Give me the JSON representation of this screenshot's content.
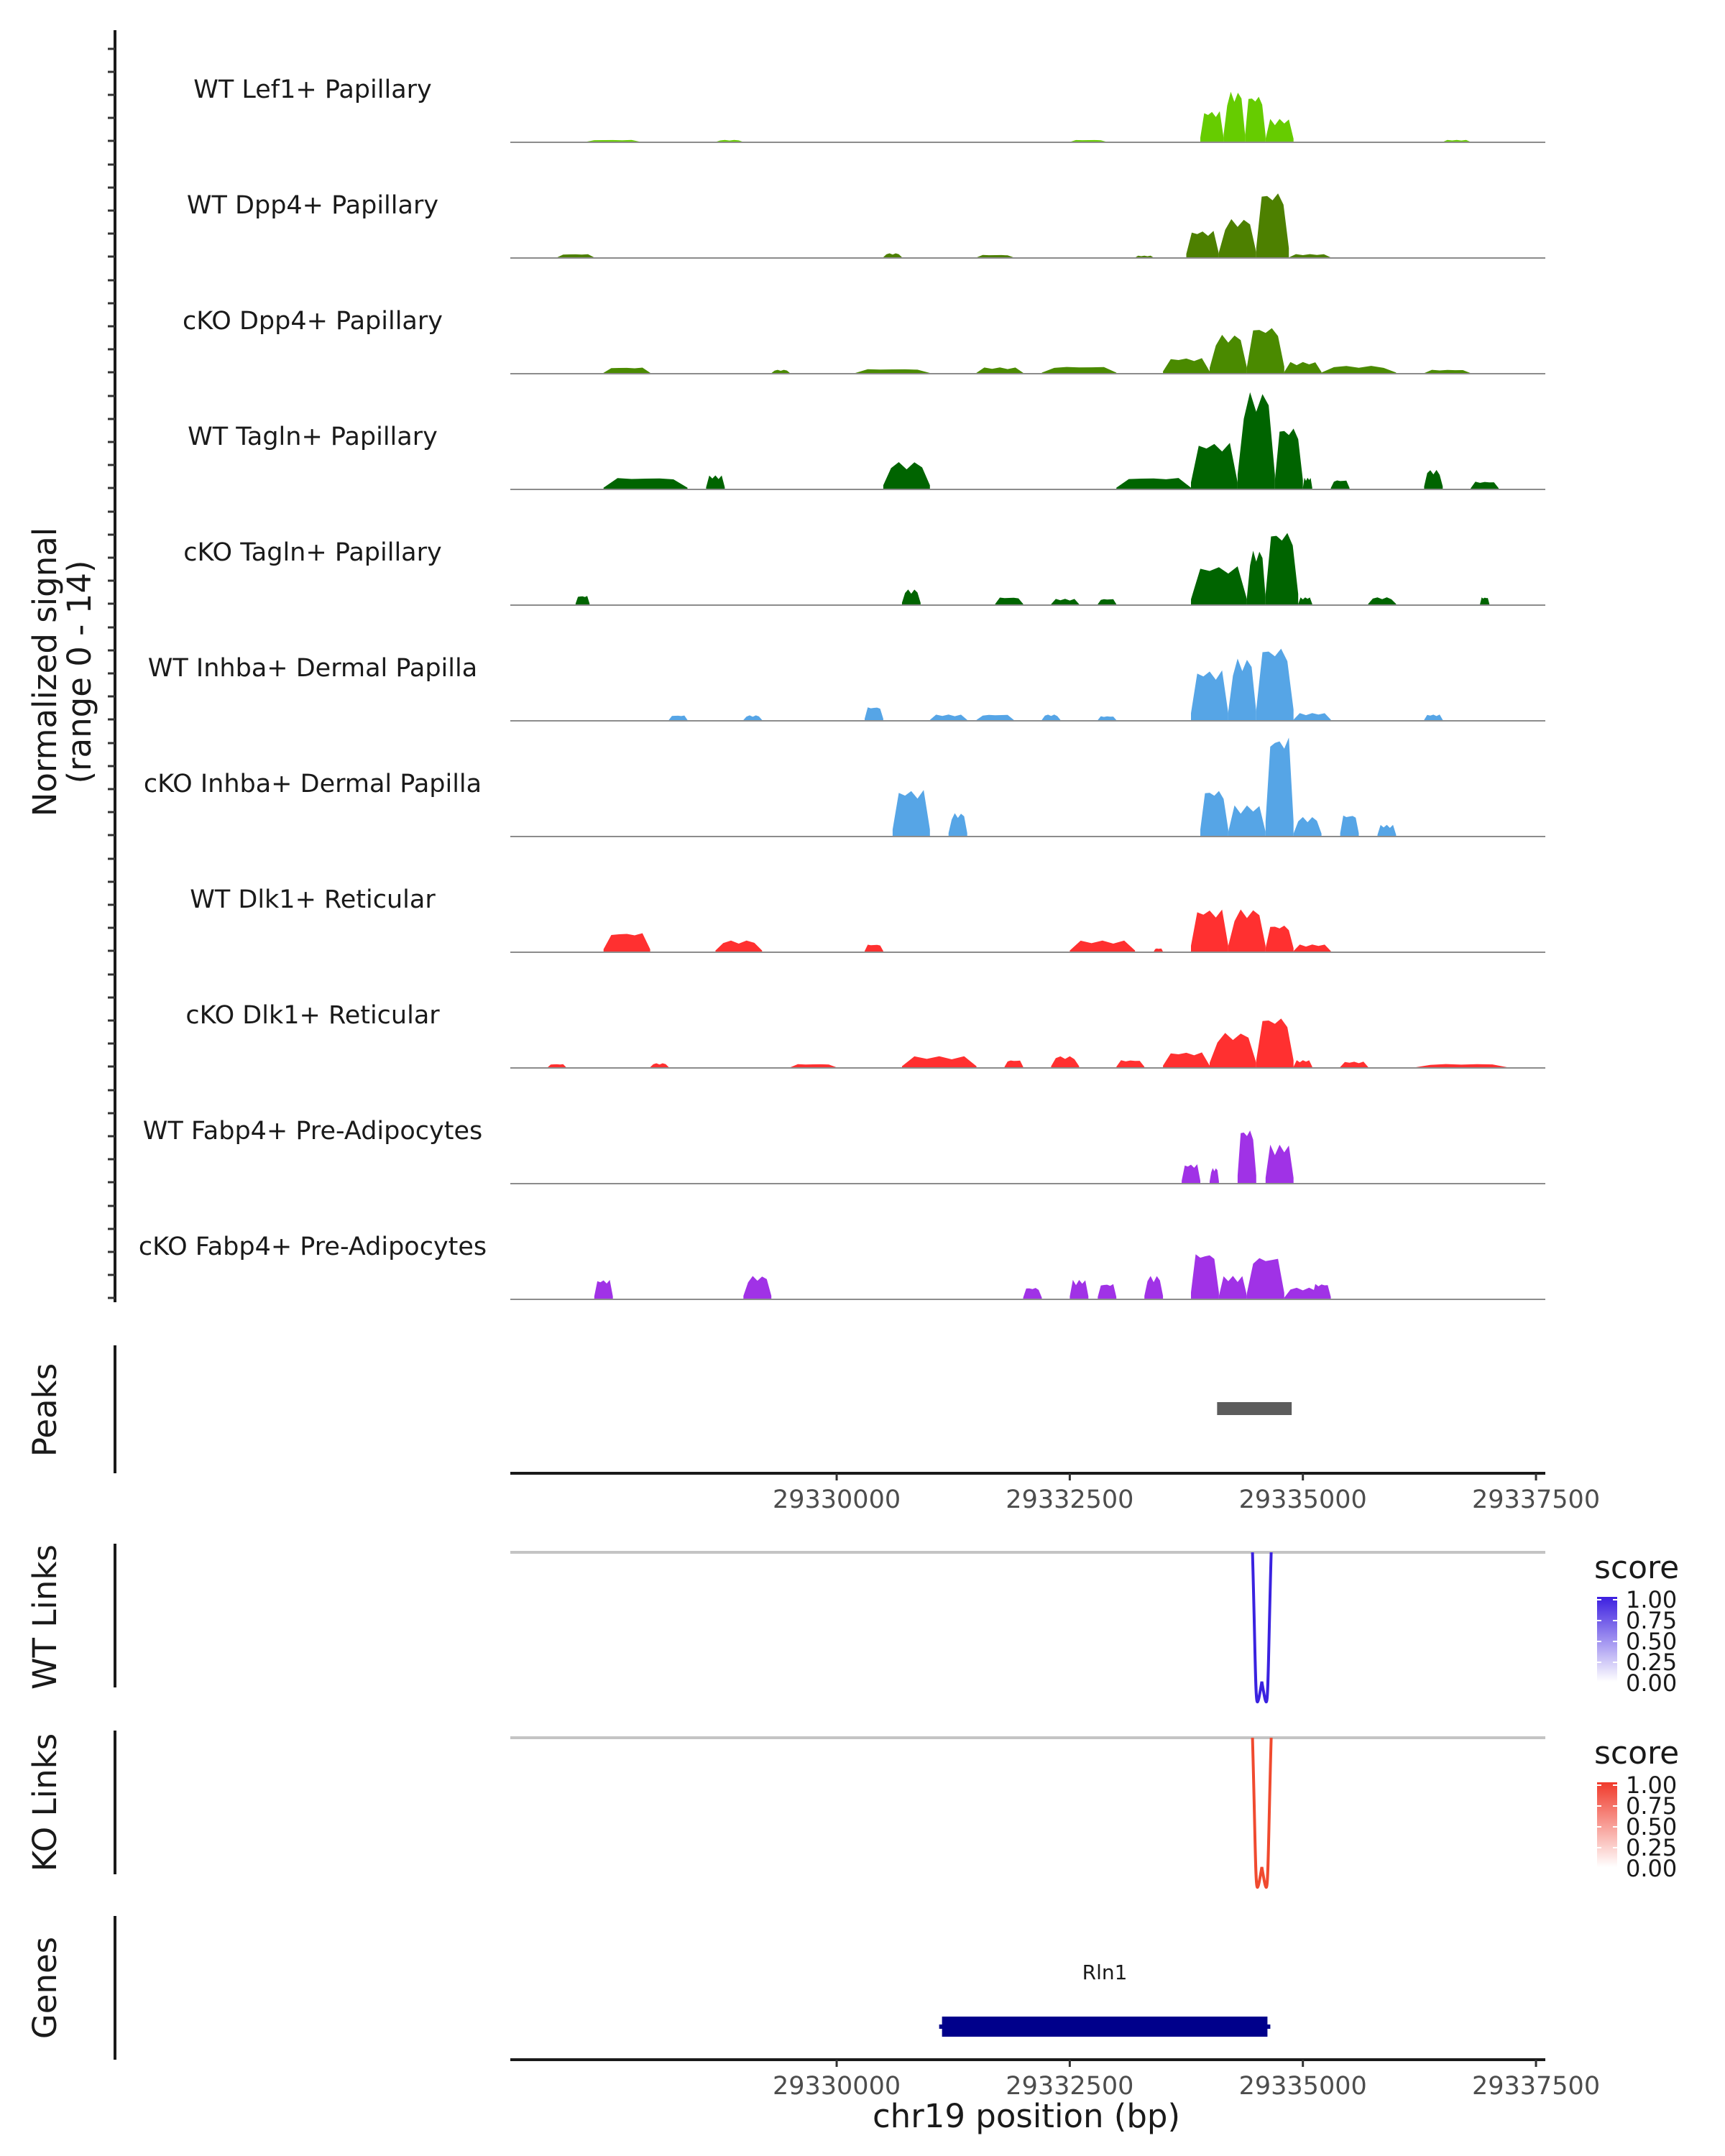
{
  "chart_data": {
    "type": "genome-browser",
    "coverage": {
      "ylabel_line1": "Normalized signal",
      "ylabel_line2": "(range 0 - 14)",
      "y_range": [
        0,
        14
      ],
      "x_range": [
        29326500,
        29337600
      ],
      "tracks": [
        {
          "name": "WT Lef1+ Papillary",
          "color": "#66cc00",
          "peaks": [
            [
              29333900,
              29334150,
              4.0
            ],
            [
              29334150,
              29334380,
              6.5
            ],
            [
              29334380,
              29334600,
              6.0
            ],
            [
              29334600,
              29334900,
              3.0
            ],
            [
              29327300,
              29327900,
              0.3
            ],
            [
              29328700,
              29329000,
              0.3
            ],
            [
              29332500,
              29332900,
              0.3
            ],
            [
              29336500,
              29336800,
              0.3
            ]
          ]
        },
        {
          "name": "WT Dpp4+ Papillary",
          "color": "#4d8000",
          "peaks": [
            [
              29333750,
              29334100,
              3.5
            ],
            [
              29334100,
              29334500,
              5.0
            ],
            [
              29334500,
              29334850,
              8.5
            ],
            [
              29334850,
              29335300,
              0.5
            ],
            [
              29327000,
              29327400,
              0.5
            ],
            [
              29330500,
              29330700,
              0.6
            ],
            [
              29331500,
              29331900,
              0.4
            ],
            [
              29333200,
              29333400,
              0.3
            ]
          ]
        },
        {
          "name": "cKO Dpp4+ Papillary",
          "color": "#4a8a00",
          "peaks": [
            [
              29333500,
              29334000,
              2.0
            ],
            [
              29334000,
              29334400,
              5.0
            ],
            [
              29334400,
              29334800,
              6.0
            ],
            [
              29334800,
              29335200,
              1.5
            ],
            [
              29327500,
              29328000,
              0.8
            ],
            [
              29329300,
              29329500,
              0.5
            ],
            [
              29330200,
              29331000,
              0.6
            ],
            [
              29331500,
              29332000,
              0.8
            ],
            [
              29332200,
              29333000,
              0.9
            ],
            [
              29335200,
              29336000,
              1.0
            ],
            [
              29336300,
              29336800,
              0.5
            ]
          ]
        },
        {
          "name": "WT Tagln+ Papillary",
          "color": "#006400",
          "peaks": [
            [
              29333800,
              29334300,
              6.0
            ],
            [
              29334300,
              29334700,
              12.5
            ],
            [
              29334700,
              29335000,
              8.0
            ],
            [
              29335000,
              29335100,
              1.5
            ],
            [
              29333000,
              29333800,
              1.5
            ],
            [
              29330500,
              29331000,
              3.5
            ],
            [
              29327500,
              29328400,
              1.5
            ],
            [
              29328600,
              29328800,
              1.8
            ],
            [
              29335300,
              29335500,
              1.2
            ],
            [
              29336300,
              29336500,
              2.5
            ],
            [
              29336800,
              29337100,
              1.0
            ]
          ]
        },
        {
          "name": "cKO Tagln+ Papillary",
          "color": "#006400",
          "peaks": [
            [
              29333800,
              29334400,
              5.0
            ],
            [
              29334400,
              29334600,
              7.0
            ],
            [
              29334600,
              29334950,
              9.5
            ],
            [
              29334950,
              29335100,
              1.0
            ],
            [
              29327200,
              29327350,
              1.2
            ],
            [
              29330700,
              29330900,
              2.0
            ],
            [
              29331700,
              29332000,
              1.0
            ],
            [
              29332300,
              29332600,
              0.8
            ],
            [
              29332800,
              29333000,
              0.8
            ],
            [
              29335700,
              29336000,
              1.0
            ],
            [
              29336900,
              29337000,
              1.0
            ]
          ]
        },
        {
          "name": "WT Inhba+ Dermal Papilla",
          "color": "#56a5e6",
          "peaks": [
            [
              29333800,
              29334200,
              6.5
            ],
            [
              29334200,
              29334500,
              8.0
            ],
            [
              29334500,
              29334900,
              9.5
            ],
            [
              29334900,
              29335300,
              1.0
            ],
            [
              29328200,
              29328400,
              0.7
            ],
            [
              29329000,
              29329200,
              0.7
            ],
            [
              29330300,
              29330500,
              1.8
            ],
            [
              29331000,
              29331400,
              0.8
            ],
            [
              29331500,
              29331900,
              0.8
            ],
            [
              29332200,
              29332400,
              0.8
            ],
            [
              29332800,
              29333000,
              0.6
            ],
            [
              29336300,
              29336500,
              0.8
            ]
          ]
        },
        {
          "name": "cKO Inhba+ Dermal Papilla",
          "color": "#56a5e6",
          "peaks": [
            [
              29330600,
              29331000,
              6.0
            ],
            [
              29331200,
              29331400,
              3.0
            ],
            [
              29333900,
              29334200,
              6.0
            ],
            [
              29334200,
              29334600,
              4.0
            ],
            [
              29334600,
              29334900,
              13.0
            ],
            [
              29334900,
              29335200,
              2.5
            ],
            [
              29335400,
              29335600,
              2.8
            ],
            [
              29335800,
              29336000,
              1.5
            ]
          ]
        },
        {
          "name": "WT Dlk1+ Reticular",
          "color": "#ff3030",
          "peaks": [
            [
              29333800,
              29334200,
              5.5
            ],
            [
              29334200,
              29334600,
              5.5
            ],
            [
              29334600,
              29334900,
              3.5
            ],
            [
              29334900,
              29335300,
              1.0
            ],
            [
              29327500,
              29328000,
              2.5
            ],
            [
              29328700,
              29329200,
              1.5
            ],
            [
              29330300,
              29330500,
              1.0
            ],
            [
              29332500,
              29333200,
              1.5
            ],
            [
              29333400,
              29333500,
              0.5
            ]
          ]
        },
        {
          "name": "cKO Dlk1+ Reticular",
          "color": "#ff3030",
          "peaks": [
            [
              29333500,
              29334000,
              2.0
            ],
            [
              29334000,
              29334500,
              4.5
            ],
            [
              29334500,
              29334900,
              6.5
            ],
            [
              29334900,
              29335100,
              1.0
            ],
            [
              29326900,
              29327100,
              0.5
            ],
            [
              29328000,
              29328200,
              0.6
            ],
            [
              29329500,
              29330000,
              0.5
            ],
            [
              29330700,
              29331500,
              1.5
            ],
            [
              29331800,
              29332000,
              1.0
            ],
            [
              29332300,
              29332600,
              1.5
            ],
            [
              29333000,
              29333300,
              1.0
            ],
            [
              29335400,
              29335700,
              0.8
            ],
            [
              29336200,
              29337200,
              0.5
            ]
          ]
        },
        {
          "name": "WT Fabp4+ Pre-Adipocytes",
          "color": "#a032e6",
          "peaks": [
            [
              29333700,
              29333900,
              2.5
            ],
            [
              29334000,
              29334100,
              2.0
            ],
            [
              29334300,
              29334500,
              7.0
            ],
            [
              29334600,
              29334900,
              5.0
            ]
          ]
        },
        {
          "name": "cKO Fabp4+ Pre-Adipocytes",
          "color": "#a032e6",
          "peaks": [
            [
              29327400,
              29327600,
              2.5
            ],
            [
              29329000,
              29329300,
              3.0
            ],
            [
              29332000,
              29332200,
              1.5
            ],
            [
              29332500,
              29332700,
              2.5
            ],
            [
              29332800,
              29333000,
              2.0
            ],
            [
              29333300,
              29333500,
              3.0
            ],
            [
              29333800,
              29334100,
              6.0
            ],
            [
              29334100,
              29334400,
              3.0
            ],
            [
              29334400,
              29334800,
              5.5
            ],
            [
              29334800,
              29335200,
              1.5
            ],
            [
              29335100,
              29335300,
              2.0
            ]
          ]
        }
      ]
    },
    "peaks_track": {
      "label": "Peaks",
      "regions": [
        [
          29334080,
          29334880
        ]
      ]
    },
    "axis": {
      "ticks": [
        29330000,
        29332500,
        29335000,
        29337500
      ],
      "tick_labels": [
        "29330000",
        "29332500",
        "29335000",
        "29337500"
      ]
    },
    "links": [
      {
        "label": "WT Links",
        "color": "#3a22e0",
        "start": 29334460,
        "end": 29334660,
        "score": 1.0
      },
      {
        "label": "KO Links",
        "color": "#f04a2f",
        "start": 29334460,
        "end": 29334660,
        "score": 1.0
      }
    ],
    "legends": [
      {
        "title": "score",
        "color_high": "#3c1fe0",
        "ticks": [
          "1.00",
          "0.75",
          "0.50",
          "0.25",
          "0.00"
        ]
      },
      {
        "title": "score",
        "color_high": "#f03a2b",
        "ticks": [
          "1.00",
          "0.75",
          "0.50",
          "0.25",
          "0.00"
        ]
      }
    ],
    "genes": {
      "label": "Genes",
      "color": "#00008b",
      "items": [
        {
          "name": "Rln1",
          "start": 29331130,
          "end": 29334620
        }
      ]
    },
    "xlabel": "chr19 position (bp)"
  }
}
